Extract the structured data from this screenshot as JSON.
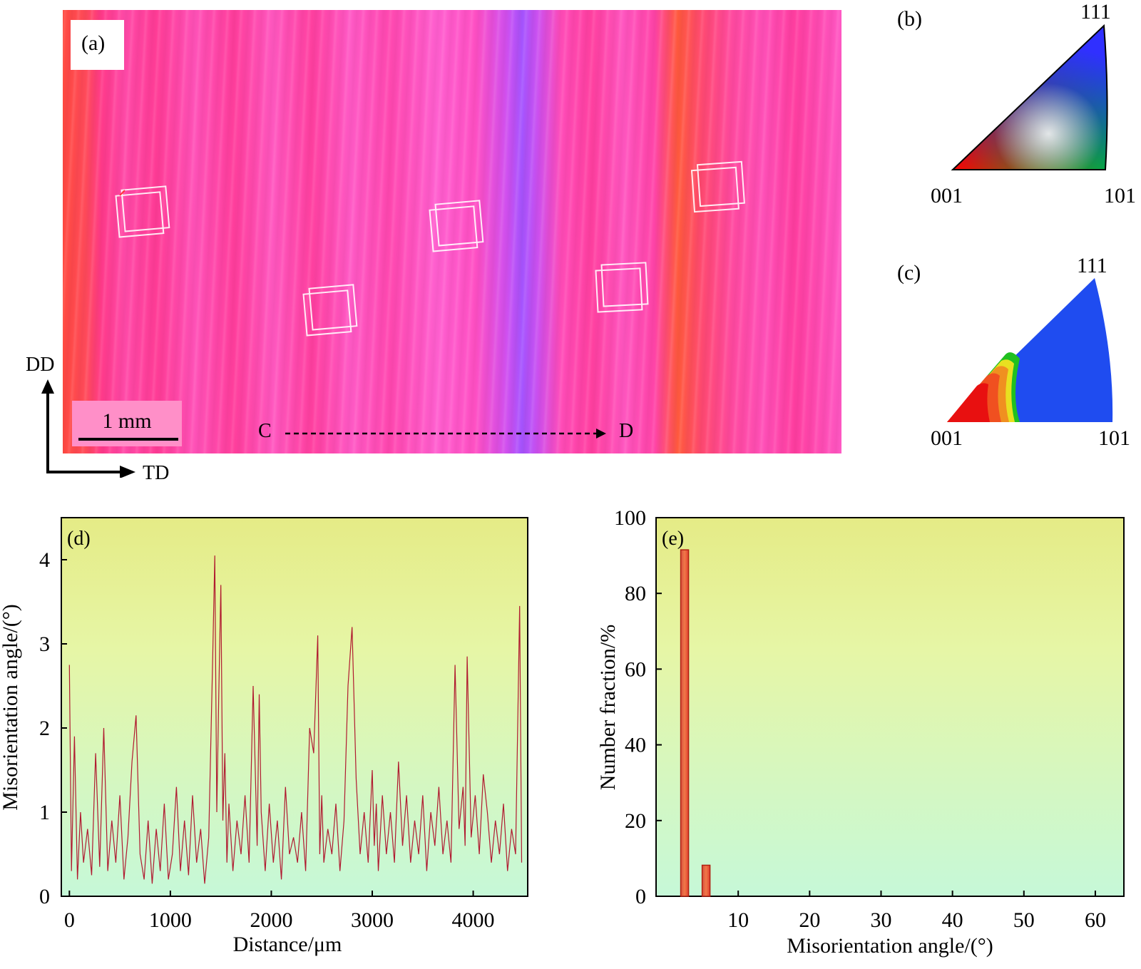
{
  "panel_a": {
    "label": "(a)",
    "scale_bar": "1 mm",
    "line_start": "C",
    "line_end": "D",
    "axis_vertical": "DD",
    "axis_horizontal": "TD"
  },
  "panel_b": {
    "label": "(b)",
    "corner_top": "111",
    "corner_left": "001",
    "corner_right": "101"
  },
  "panel_c": {
    "label": "(c)",
    "corner_top": "111",
    "corner_left": "001",
    "corner_right": "101"
  },
  "chart_data": [
    {
      "panel": "(d)",
      "type": "line",
      "xlabel": "Distance/μm",
      "ylabel": "Misorientation angle/(°)",
      "xlim": [
        -80,
        4540
      ],
      "ylim": [
        0,
        4.5
      ],
      "x_ticks": [
        0,
        1000,
        2000,
        3000,
        4000
      ],
      "y_ticks": [
        0,
        1,
        2,
        3,
        4
      ],
      "color": "#b01a30",
      "x": [
        0,
        20,
        50,
        80,
        110,
        140,
        180,
        220,
        260,
        300,
        340,
        380,
        420,
        460,
        500,
        540,
        580,
        620,
        660,
        700,
        740,
        780,
        820,
        860,
        900,
        940,
        980,
        1020,
        1060,
        1100,
        1140,
        1180,
        1220,
        1260,
        1300,
        1340,
        1380,
        1420,
        1440,
        1460,
        1480,
        1500,
        1520,
        1540,
        1560,
        1580,
        1620,
        1660,
        1700,
        1740,
        1780,
        1820,
        1860,
        1880,
        1900,
        1940,
        1980,
        2020,
        2060,
        2100,
        2140,
        2180,
        2220,
        2260,
        2300,
        2340,
        2380,
        2420,
        2460,
        2480,
        2500,
        2520,
        2560,
        2600,
        2640,
        2680,
        2720,
        2760,
        2800,
        2840,
        2880,
        2920,
        2960,
        3000,
        3020,
        3040,
        3060,
        3100,
        3140,
        3180,
        3220,
        3260,
        3300,
        3340,
        3380,
        3420,
        3460,
        3500,
        3540,
        3580,
        3620,
        3660,
        3700,
        3740,
        3780,
        3820,
        3860,
        3900,
        3920,
        3940,
        3980,
        4020,
        4060,
        4100,
        4140,
        4180,
        4220,
        4260,
        4300,
        4340,
        4380,
        4420,
        4460,
        4480
      ],
      "values": [
        2.75,
        0.3,
        1.9,
        0.2,
        1.0,
        0.4,
        0.8,
        0.25,
        1.7,
        0.35,
        2.0,
        0.3,
        0.9,
        0.4,
        1.2,
        0.2,
        0.7,
        1.6,
        2.15,
        0.5,
        0.2,
        0.9,
        0.15,
        0.8,
        0.3,
        1.1,
        0.2,
        0.5,
        1.3,
        0.3,
        0.9,
        0.25,
        1.2,
        0.4,
        0.8,
        0.15,
        0.7,
        2.85,
        4.05,
        1.0,
        2.4,
        3.7,
        0.9,
        1.7,
        0.4,
        1.1,
        0.3,
        0.9,
        0.5,
        1.2,
        0.4,
        2.5,
        0.6,
        2.4,
        1.0,
        0.3,
        1.1,
        0.4,
        0.9,
        0.2,
        1.3,
        0.5,
        0.7,
        0.4,
        1.0,
        0.3,
        2.0,
        1.7,
        3.1,
        0.5,
        1.2,
        0.4,
        0.8,
        0.5,
        1.1,
        0.3,
        0.9,
        2.5,
        3.2,
        1.4,
        0.5,
        1.0,
        0.4,
        1.5,
        0.6,
        1.1,
        0.3,
        1.2,
        0.5,
        1.0,
        0.4,
        1.6,
        0.6,
        1.2,
        0.4,
        0.9,
        0.5,
        1.2,
        0.3,
        1.0,
        0.6,
        1.3,
        0.5,
        0.9,
        0.4,
        2.75,
        0.8,
        1.3,
        0.6,
        2.85,
        0.7,
        1.2,
        0.5,
        1.45,
        1.0,
        0.4,
        0.9,
        0.5,
        1.1,
        0.3,
        0.8,
        0.5,
        3.45,
        0.4
      ]
    },
    {
      "panel": "(e)",
      "type": "bar",
      "xlabel": "Misorientation angle/(°)",
      "ylabel": "Number fraction/%",
      "xlim": [
        -1.5,
        64
      ],
      "ylim": [
        0,
        100
      ],
      "x_ticks": [
        10,
        20,
        30,
        40,
        50,
        60
      ],
      "y_ticks": [
        0,
        20,
        40,
        60,
        80,
        100
      ],
      "x": [
        2.5,
        5.5
      ],
      "values": [
        91.5,
        8.2
      ],
      "bar_width": 1.1,
      "color": "#e84030"
    }
  ]
}
